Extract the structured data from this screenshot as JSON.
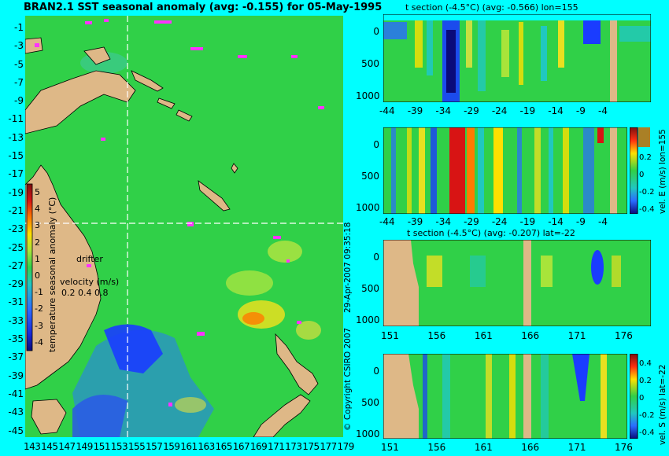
{
  "map": {
    "title": "BRAN2.1 SST seasonal anomaly (avg: -0.155) for 05-May-1995",
    "lat_ticks": [
      "-1",
      "-3",
      "-5",
      "-7",
      "-9",
      "-11",
      "-13",
      "-15",
      "-17",
      "-19",
      "-21",
      "-23",
      "-25",
      "-27",
      "-29",
      "-31",
      "-33",
      "-35",
      "-37",
      "-39",
      "-41",
      "-43",
      "-45"
    ],
    "lon_ticks": [
      "143",
      "145",
      "147",
      "149",
      "151",
      "153",
      "155",
      "157",
      "159",
      "161",
      "163",
      "165",
      "167",
      "169",
      "171",
      "173",
      "175",
      "177",
      "179"
    ],
    "colorbar": {
      "label": "temperature seasonal anomaly (°C)",
      "ticks": [
        "5",
        "4",
        "3",
        "2",
        "1",
        "0",
        "-1",
        "-2",
        "-3",
        "-4"
      ]
    },
    "drifter_label": "drifter",
    "velocity_label": "velocity (m/s)",
    "velocity_scale": "0.2 0.4 0.8",
    "colors": {
      "land": "#deb887",
      "ocean": "#2fd24a",
      "cold": "#1a3cff",
      "drifter": "#ff33ff",
      "background": "#00ffff"
    }
  },
  "panels": [
    {
      "title": "t section (-4.5°C) (avg: -0.566) lon=155",
      "x_ticks": [
        "-44",
        "-39",
        "-34",
        "-29",
        "-24",
        "-19",
        "-14",
        "-9",
        "-4"
      ],
      "y_ticks": [
        "0",
        "500",
        "1000"
      ]
    },
    {
      "title": "",
      "x_ticks": [
        "-44",
        "-39",
        "-34",
        "-29",
        "-24",
        "-19",
        "-14",
        "-9",
        "-4"
      ],
      "y_ticks": [
        "0",
        "500",
        "1000"
      ],
      "colorbar_label": "vel. E (m/s) lon=155",
      "colorbar_ticks": [
        "0.2",
        "0",
        "-0.2",
        "-0.4"
      ]
    },
    {
      "title": "t section (-4.5°C) (avg: -0.207) lat=-22",
      "x_ticks": [
        "151",
        "156",
        "161",
        "166",
        "171",
        "176"
      ],
      "y_ticks": [
        "0",
        "500",
        "1000"
      ]
    },
    {
      "title": "",
      "x_ticks": [
        "151",
        "156",
        "161",
        "166",
        "171",
        "176"
      ],
      "y_ticks": [
        "0",
        "500",
        "1000"
      ],
      "colorbar_label": "vel. S (m/s) lat=-22",
      "colorbar_ticks": [
        "0.4",
        "0.2",
        "0",
        "-0.2",
        "-0.4"
      ]
    }
  ],
  "side_text": {
    "timestamp": "29-Apr-2007 09:35:18",
    "copyright": "© Copyright CSIRO 2007"
  }
}
